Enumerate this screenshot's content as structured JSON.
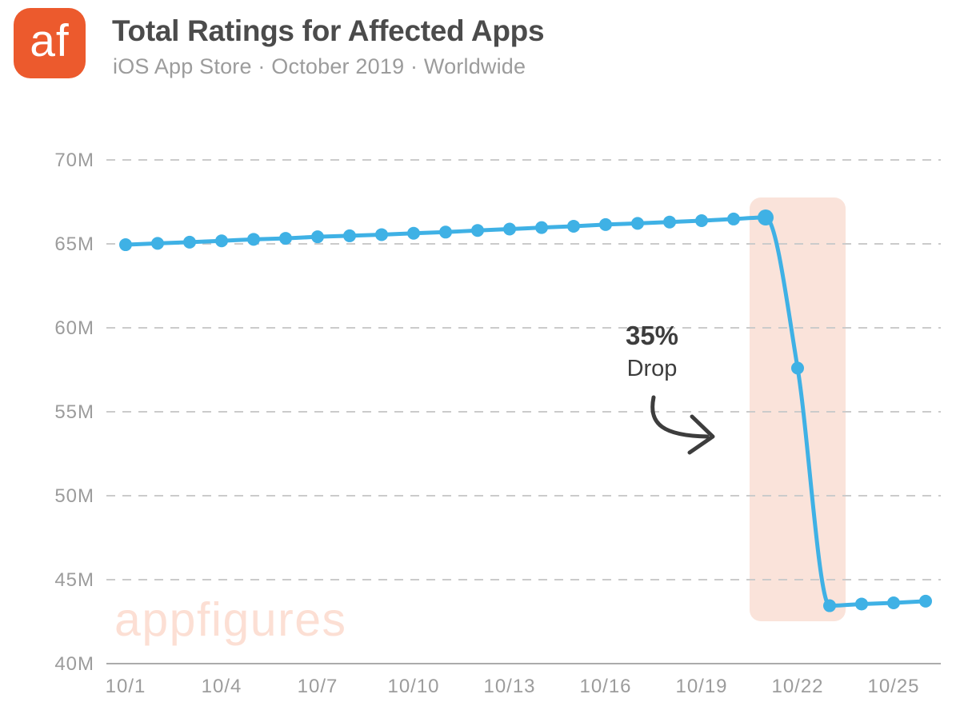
{
  "header": {
    "logo_text": "af",
    "title": "Total Ratings for Affected Apps",
    "subtitle": "iOS App Store · October 2019 · Worldwide"
  },
  "annotation": {
    "percent": "35%",
    "label": "Drop"
  },
  "watermark": "appfigures",
  "colors": {
    "brand_orange": "#ec5a2d",
    "line_blue": "#3fb1e5",
    "highlight_band": "#fae3da",
    "gridline": "#cbcbcb",
    "axis_line": "#ababab",
    "tick_label": "#9c9c9c",
    "title_text": "#4b4b4b",
    "subtitle_text": "#9c9c9c",
    "annotation_text": "#3d3d3d",
    "watermark_pink": "#fcdfd4"
  },
  "chart_data": {
    "type": "line",
    "title": "Total Ratings for Affected Apps",
    "subtitle": "iOS App Store · October 2019 · Worldwide",
    "unit": "total ratings, millions",
    "x": [
      "10/1",
      "10/2",
      "10/3",
      "10/4",
      "10/5",
      "10/6",
      "10/7",
      "10/8",
      "10/9",
      "10/10",
      "10/11",
      "10/12",
      "10/13",
      "10/14",
      "10/15",
      "10/16",
      "10/17",
      "10/18",
      "10/19",
      "10/20",
      "10/21",
      "10/22",
      "10/23",
      "10/24",
      "10/25",
      "10/26"
    ],
    "values_millions": [
      64.95,
      65.03,
      65.1,
      65.18,
      65.27,
      65.33,
      65.42,
      65.48,
      65.55,
      65.63,
      65.7,
      65.8,
      65.88,
      65.97,
      66.05,
      66.15,
      66.22,
      66.3,
      66.38,
      66.48,
      66.57,
      57.6,
      43.45,
      43.55,
      43.62,
      43.72
    ],
    "x_tick_labels": [
      "10/1",
      "10/4",
      "10/7",
      "10/10",
      "10/13",
      "10/16",
      "10/19",
      "10/22",
      "10/25"
    ],
    "y_ticks": [
      {
        "label": "70M",
        "value": 70
      },
      {
        "label": "65M",
        "value": 65
      },
      {
        "label": "60M",
        "value": 60
      },
      {
        "label": "55M",
        "value": 55
      },
      {
        "label": "50M",
        "value": 50
      },
      {
        "label": "45M",
        "value": 45
      },
      {
        "label": "40M",
        "value": 40
      }
    ],
    "ylim": [
      40,
      70
    ],
    "grid": "horizontal-dashed",
    "legend": "none",
    "highlight_band": {
      "from": "10/21",
      "to": "10/23"
    },
    "annotation": {
      "text": "35% Drop",
      "points_to": "highlight_band"
    }
  }
}
